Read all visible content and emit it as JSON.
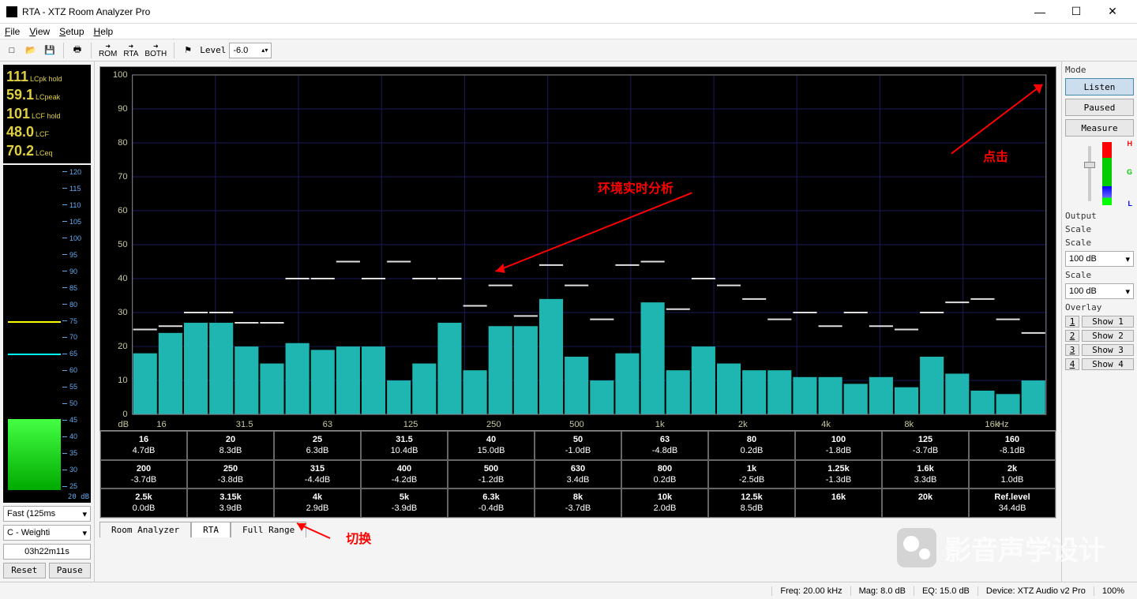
{
  "window": {
    "title": "RTA - XTZ Room Analyzer Pro"
  },
  "menu": {
    "file": "File",
    "view": "View",
    "setup": "Setup",
    "help": "Help"
  },
  "toolbar": {
    "rom": "ROM",
    "rta": "RTA",
    "both": "BOTH",
    "level_label": "Level",
    "level_value": "-6.0"
  },
  "lc": {
    "vals": [
      {
        "v": "111",
        "l": "LCpk hold"
      },
      {
        "v": "59.1",
        "l": "LCpeak"
      },
      {
        "v": "101",
        "l": "LCF hold"
      },
      {
        "v": "48.0",
        "l": "LCF"
      },
      {
        "v": "70.2",
        "l": "LCeq"
      }
    ],
    "vu": {
      "fill_pct": 22,
      "yellow_pct": 52,
      "cyan_pct": 42,
      "ticks": [
        "120",
        "115",
        "110",
        "105",
        "100",
        "95",
        "90",
        "85",
        "80",
        "75",
        "70",
        "65",
        "60",
        "55",
        "50",
        "45",
        "40",
        "35",
        "30",
        "25"
      ],
      "bottom": "20 dB"
    },
    "drop1": "Fast (125ms",
    "drop2": "C - Weighti",
    "time": "03h22m11s",
    "reset": "Reset",
    "pause": "Pause"
  },
  "chart": {
    "type": "bar",
    "y_ticks": [
      0,
      10,
      20,
      30,
      40,
      50,
      60,
      70,
      80,
      90,
      100
    ],
    "ylim": [
      0,
      100
    ],
    "x_labels": [
      "16",
      "31.5",
      "63",
      "125",
      "250",
      "500",
      "1k",
      "2k",
      "4k",
      "8k",
      "16k"
    ],
    "x_unit_l": "dB",
    "x_unit_r": "Hz",
    "bars": [
      18,
      24,
      27,
      27,
      20,
      15,
      21,
      19,
      20,
      20,
      10,
      15,
      27,
      13,
      26,
      26,
      34,
      17,
      10,
      18,
      33,
      13,
      20,
      15,
      13,
      13,
      11,
      11,
      9,
      11,
      8,
      17,
      12,
      7,
      6,
      10
    ],
    "peaks": [
      25,
      26,
      30,
      30,
      27,
      27,
      40,
      40,
      45,
      40,
      45,
      40,
      40,
      32,
      38,
      29,
      44,
      38,
      28,
      44,
      45,
      31,
      40,
      38,
      34,
      28,
      30,
      26,
      30,
      26,
      25,
      30,
      33,
      34,
      28,
      24
    ],
    "bar_color": "#1fb5b0",
    "peak_color": "#e0e0e0",
    "bg": "#000",
    "grid": "#1a1a5a",
    "axis": "#c8c8a0"
  },
  "table": {
    "rows": [
      [
        {
          "f": "16",
          "d": "4.7dB"
        },
        {
          "f": "20",
          "d": "8.3dB"
        },
        {
          "f": "25",
          "d": "6.3dB"
        },
        {
          "f": "31.5",
          "d": "10.4dB"
        },
        {
          "f": "40",
          "d": "15.0dB"
        },
        {
          "f": "50",
          "d": "-1.0dB"
        },
        {
          "f": "63",
          "d": "-4.8dB"
        },
        {
          "f": "80",
          "d": "0.2dB"
        },
        {
          "f": "100",
          "d": "-1.8dB"
        },
        {
          "f": "125",
          "d": "-3.7dB"
        },
        {
          "f": "160",
          "d": "-8.1dB"
        }
      ],
      [
        {
          "f": "200",
          "d": "-3.7dB"
        },
        {
          "f": "250",
          "d": "-3.8dB"
        },
        {
          "f": "315",
          "d": "-4.4dB"
        },
        {
          "f": "400",
          "d": "-4.2dB"
        },
        {
          "f": "500",
          "d": "-1.2dB"
        },
        {
          "f": "630",
          "d": "3.4dB"
        },
        {
          "f": "800",
          "d": "0.2dB"
        },
        {
          "f": "1k",
          "d": "-2.5dB"
        },
        {
          "f": "1.25k",
          "d": "-1.3dB"
        },
        {
          "f": "1.6k",
          "d": "3.3dB"
        },
        {
          "f": "2k",
          "d": "1.0dB"
        }
      ],
      [
        {
          "f": "2.5k",
          "d": "0.0dB"
        },
        {
          "f": "3.15k",
          "d": "3.9dB"
        },
        {
          "f": "4k",
          "d": "2.9dB"
        },
        {
          "f": "5k",
          "d": "-3.9dB"
        },
        {
          "f": "6.3k",
          "d": "-0.4dB"
        },
        {
          "f": "8k",
          "d": "-3.7dB"
        },
        {
          "f": "10k",
          "d": "2.0dB"
        },
        {
          "f": "12.5k",
          "d": "8.5dB"
        },
        {
          "f": "16k",
          "d": ""
        },
        {
          "f": "20k",
          "d": ""
        },
        {
          "f": "Ref.level",
          "d": "34.4dB"
        }
      ]
    ]
  },
  "tabs": {
    "a": "Room Analyzer",
    "b": "RTA",
    "c": "Full Range"
  },
  "right": {
    "mode": "Mode",
    "listen": "Listen",
    "paused": "Paused",
    "measure": "Measure",
    "output": "Output",
    "scale": "Scale",
    "scale_v": "100 dB",
    "overlay": "Overlay",
    "ov": [
      {
        "n": "1",
        "l": "Show 1"
      },
      {
        "n": "2",
        "l": "Show 2"
      },
      {
        "n": "3",
        "l": "Show 3"
      },
      {
        "n": "4",
        "l": "Show 4"
      }
    ]
  },
  "status": {
    "freq": "Freq: 20.00 kHz",
    "mag": "Mag: 8.0 dB",
    "eq": "EQ: 15.0 dB",
    "dev": "Device: XTZ Audio v2 Pro",
    "pct": "100%"
  },
  "anno": {
    "a1": "点击",
    "a2": "环境实时分析",
    "a3": "切换"
  },
  "watermark": "影音声学设计"
}
